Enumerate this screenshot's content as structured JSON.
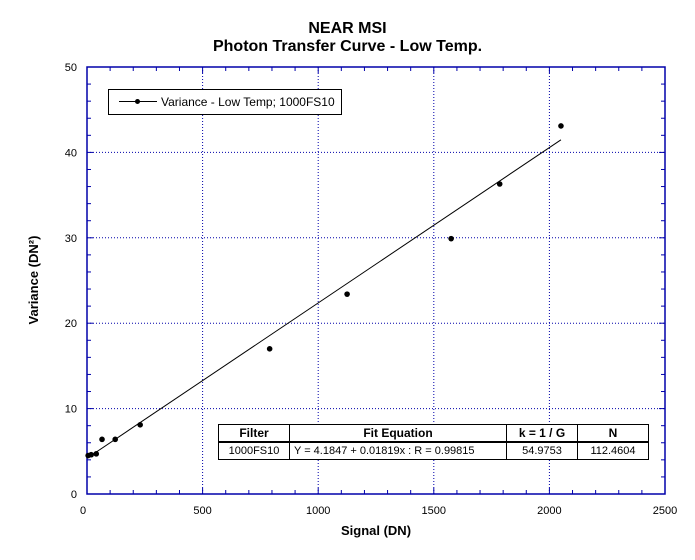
{
  "chart_data": {
    "type": "scatter",
    "title": "NEAR MSI",
    "subtitle": "Photon Transfer Curve - Low Temp.",
    "xlabel": "Signal (DN)",
    "ylabel": "Variance (DN²)",
    "xlim": [
      0,
      2500
    ],
    "ylim": [
      0,
      50
    ],
    "x_ticks": [
      "0",
      "500",
      "1000",
      "1500",
      "2000",
      "2500"
    ],
    "y_ticks": [
      "0",
      "10",
      "20",
      "30",
      "40",
      "50"
    ],
    "grid": true,
    "legend_position": "top-left",
    "series": [
      {
        "name": "Variance - Low Temp; 1000FS10",
        "points": [
          {
            "x": 5,
            "y": 4.5
          },
          {
            "x": 18,
            "y": 4.6
          },
          {
            "x": 40,
            "y": 4.7
          },
          {
            "x": 65,
            "y": 6.4
          },
          {
            "x": 122,
            "y": 6.4
          },
          {
            "x": 230,
            "y": 8.1
          },
          {
            "x": 790,
            "y": 17.0
          },
          {
            "x": 1125,
            "y": 23.4
          },
          {
            "x": 1575,
            "y": 29.9
          },
          {
            "x": 1785,
            "y": 36.3
          },
          {
            "x": 2050,
            "y": 43.1
          }
        ]
      }
    ],
    "fit_line": {
      "intercept": 4.1847,
      "slope": 0.01819,
      "x_range": [
        0,
        2050
      ]
    },
    "fit_table": {
      "headers": [
        "Filter",
        "Fit Equation",
        "k = 1 / G",
        "N"
      ],
      "row": [
        "1000FS10",
        "Y = 4.1847 + 0.01819x : R = 0.99815",
        "54.9753",
        "112.4604"
      ]
    },
    "colors": {
      "axis": "#0000AA",
      "grid": "#0000AA",
      "data": "#000000"
    }
  }
}
